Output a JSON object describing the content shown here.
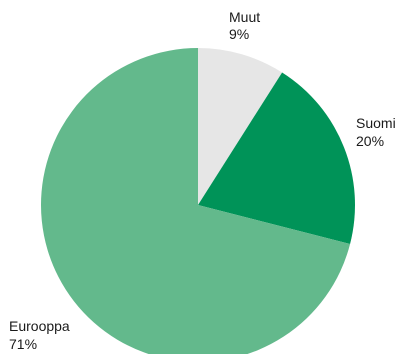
{
  "chart_data": {
    "type": "pie",
    "slices": [
      {
        "label": "Muut",
        "value": 9,
        "value_label": "9%",
        "color": "#e6e6e6"
      },
      {
        "label": "Suomi",
        "value": 20,
        "value_label": "20%",
        "color": "#009358"
      },
      {
        "label": "Eurooppa",
        "value": 71,
        "value_label": "71%",
        "color": "#63b98c"
      }
    ],
    "start_angle": "12 o'clock",
    "direction": "clockwise",
    "legend": "none"
  }
}
